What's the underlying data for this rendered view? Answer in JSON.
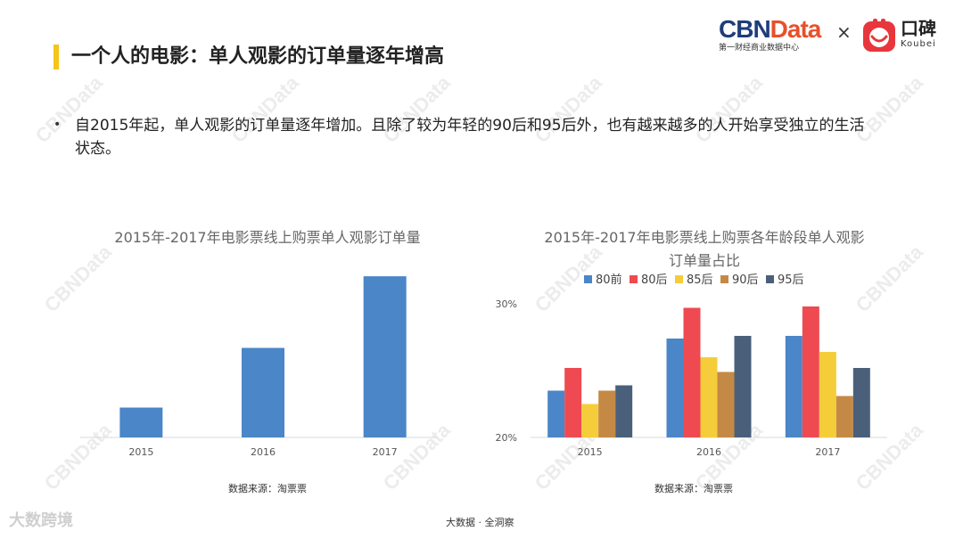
{
  "header": {
    "title": "一个人的电影：单人观影的订单量逐年增高",
    "logo_cbn_part1": "CBN",
    "logo_cbn_part2": "Data",
    "logo_cbn_sub": "第一财经商业数据中心",
    "logo_separator": "×",
    "logo_koubei_cn": "口碑",
    "logo_koubei_en": "Koubei"
  },
  "watermark": "CBNData",
  "bullet": {
    "dot": "•",
    "text": "自2015年起，单人观影的订单量逐年增加。且除了较为年轻的90后和95后外，也有越来越多的人开始享受独立的生活状态。"
  },
  "colors": {
    "accent_bar": "#f5c518",
    "bar_blue": "#4a86c8",
    "series": [
      "#4a86c8",
      "#ef4a51",
      "#f5cd3a",
      "#c48a45",
      "#4a607a"
    ]
  },
  "chart_data": [
    {
      "type": "bar",
      "title": "2015年-2017年电影票线上购票单人观影订单量",
      "categories": [
        "2015",
        "2016",
        "2017"
      ],
      "values": [
        1,
        3,
        5.4
      ],
      "ylim": [
        0,
        6
      ],
      "yaxis_visible": false,
      "source": "数据来源：淘票票"
    },
    {
      "type": "bar",
      "title": "2015年-2017年电影票线上购票各年龄段单人观影订单量占比",
      "title_lines": [
        "2015年-2017年电影票线上购票各年龄段单人观影",
        "订单量占比"
      ],
      "categories": [
        "2015",
        "2016",
        "2017"
      ],
      "series": [
        {
          "name": "80前",
          "values": [
            23.5,
            27.4,
            27.6
          ]
        },
        {
          "name": "80后",
          "values": [
            25.2,
            29.7,
            29.8
          ]
        },
        {
          "name": "85后",
          "values": [
            22.5,
            26.0,
            26.4
          ]
        },
        {
          "name": "90后",
          "values": [
            23.5,
            24.9,
            23.1
          ]
        },
        {
          "name": "95后",
          "values": [
            23.9,
            27.6,
            25.2
          ]
        }
      ],
      "ylim": [
        20,
        30
      ],
      "yticks": [
        "30%",
        "20%"
      ],
      "legend_position": "top",
      "source": "数据来源：淘票票"
    }
  ],
  "footer": {
    "center": "大数据 · 全洞察",
    "left_logo": "大数跨境"
  }
}
